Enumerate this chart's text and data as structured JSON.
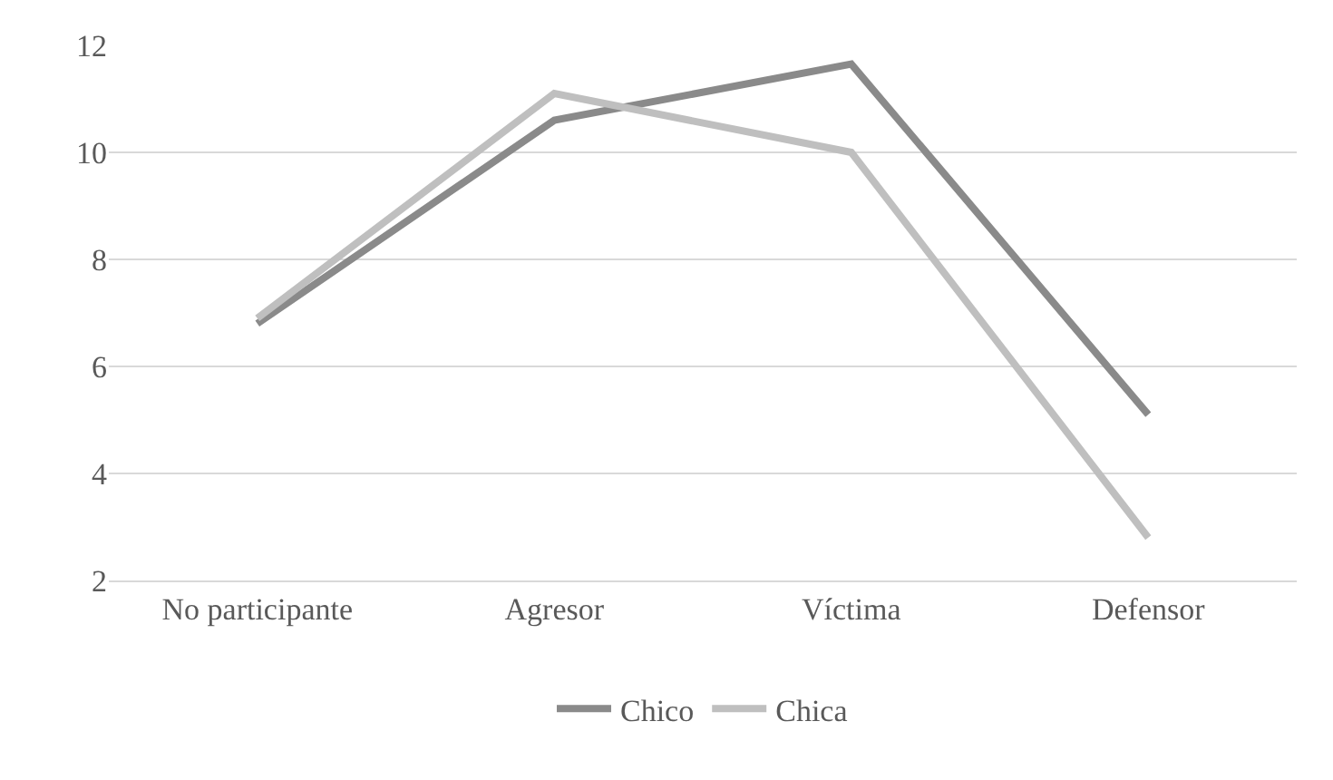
{
  "chart_data": {
    "type": "line",
    "categories": [
      "No participante",
      "Agresor",
      "Víctima",
      "Defensor"
    ],
    "series": [
      {
        "name": "Chico",
        "color": "#8a8a8a",
        "values": [
          6.8,
          10.6,
          11.65,
          5.1
        ]
      },
      {
        "name": "Chica",
        "color": "#bfbfbf",
        "values": [
          6.9,
          11.1,
          10.0,
          2.8
        ]
      }
    ],
    "ylim": [
      2,
      12
    ],
    "yticks": [
      2,
      4,
      6,
      8,
      10,
      12
    ],
    "grid": "y",
    "legend": "bottom",
    "marker": "none",
    "line_style": "solid"
  }
}
